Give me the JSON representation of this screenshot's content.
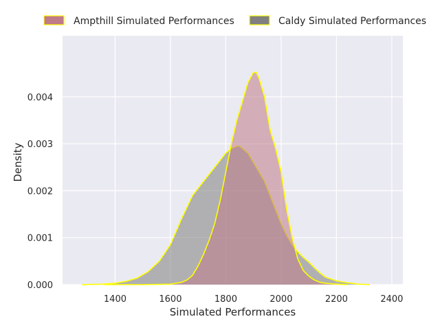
{
  "chart_data": {
    "type": "area",
    "title": "",
    "xlabel": "Simulated Performances",
    "ylabel": "Density",
    "xlim": [
      1210,
      2440
    ],
    "ylim": [
      0,
      0.0053
    ],
    "xticks": [
      1400,
      1600,
      1800,
      2000,
      2200,
      2400
    ],
    "yticks": [
      0.0,
      0.001,
      0.002,
      0.003,
      0.004
    ],
    "xtick_labels": [
      "1400",
      "1600",
      "1800",
      "2000",
      "2200",
      "2400"
    ],
    "ytick_labels": [
      "0.000",
      "0.001",
      "0.002",
      "0.003",
      "0.004"
    ],
    "grid": true,
    "legend_position": "top, above plot, horizontal",
    "colors": {
      "background": "#eaeaf2",
      "grid": "#ffffff",
      "outline": "#ffff00",
      "ampthill_fill": "#c07b88",
      "caldy_fill": "#808080"
    },
    "series": [
      {
        "name": "Ampthill Simulated Performances",
        "color": "#c07b88",
        "x": [
          1360,
          1500,
          1600,
          1640,
          1660,
          1680,
          1700,
          1720,
          1740,
          1760,
          1780,
          1800,
          1820,
          1840,
          1860,
          1880,
          1900,
          1910,
          1920,
          1940,
          1960,
          1980,
          2000,
          2020,
          2040,
          2060,
          2080,
          2100,
          2120,
          2140,
          2160,
          2180,
          2200,
          2240
        ],
        "y": [
          0.0,
          0.0,
          1e-05,
          5e-05,
          0.0001,
          0.0002,
          0.0004,
          0.00065,
          0.00095,
          0.0013,
          0.0018,
          0.0024,
          0.003,
          0.0035,
          0.0039,
          0.0043,
          0.00452,
          0.00452,
          0.0044,
          0.004,
          0.0033,
          0.0029,
          0.0024,
          0.0016,
          0.001,
          0.00055,
          0.0003,
          0.00018,
          0.0001,
          5e-05,
          3e-05,
          2e-05,
          1e-05,
          0.0
        ]
      },
      {
        "name": "Caldy Simulated Performances",
        "color": "#808080",
        "x": [
          1280,
          1360,
          1400,
          1440,
          1480,
          1520,
          1560,
          1600,
          1640,
          1680,
          1720,
          1760,
          1800,
          1820,
          1840,
          1850,
          1860,
          1880,
          1900,
          1920,
          1940,
          1960,
          1980,
          2000,
          2020,
          2040,
          2060,
          2080,
          2100,
          2120,
          2140,
          2160,
          2200,
          2240,
          2280,
          2320
        ],
        "y": [
          0.0,
          1e-05,
          3e-05,
          7e-05,
          0.00014,
          0.00028,
          0.0005,
          0.00085,
          0.0014,
          0.0019,
          0.0022,
          0.0025,
          0.0028,
          0.0029,
          0.00295,
          0.00295,
          0.0029,
          0.0028,
          0.0026,
          0.0024,
          0.0022,
          0.0019,
          0.0016,
          0.0013,
          0.00105,
          0.00085,
          0.0007,
          0.00058,
          0.00048,
          0.00036,
          0.00025,
          0.00016,
          8e-05,
          4e-05,
          1e-05,
          0.0
        ]
      }
    ]
  }
}
